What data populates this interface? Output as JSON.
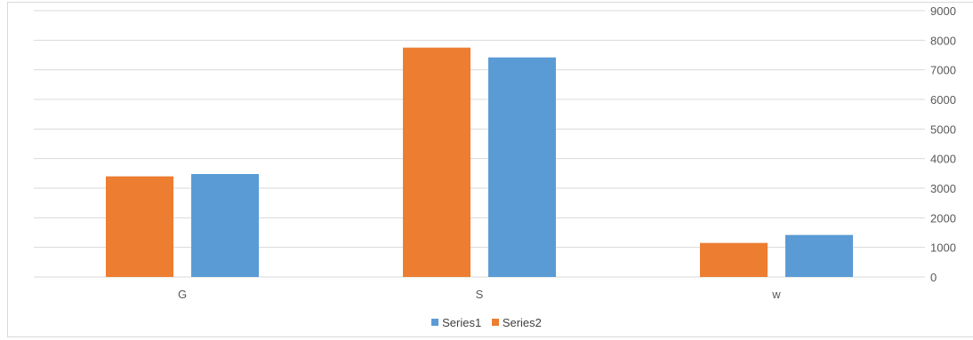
{
  "chart_data": {
    "type": "bar",
    "categories": [
      "G",
      "S",
      "w"
    ],
    "series": [
      {
        "name": "Series2",
        "values": [
          3400,
          7750,
          1150
        ],
        "color": "#ED7D31"
      },
      {
        "name": "Series1",
        "values": [
          3480,
          7420,
          1420
        ],
        "color": "#5B9BD5"
      }
    ],
    "title": "",
    "xlabel": "",
    "ylabel": "",
    "ylim": [
      0,
      9000
    ],
    "y_ticks": [
      "0",
      "1000",
      "2000",
      "3000",
      "4000",
      "5000",
      "6000",
      "7000",
      "8000",
      "9000"
    ],
    "y_axis_side": "right",
    "grid": true,
    "legend_position": "bottom",
    "legend": [
      "Series1",
      "Series2"
    ]
  }
}
